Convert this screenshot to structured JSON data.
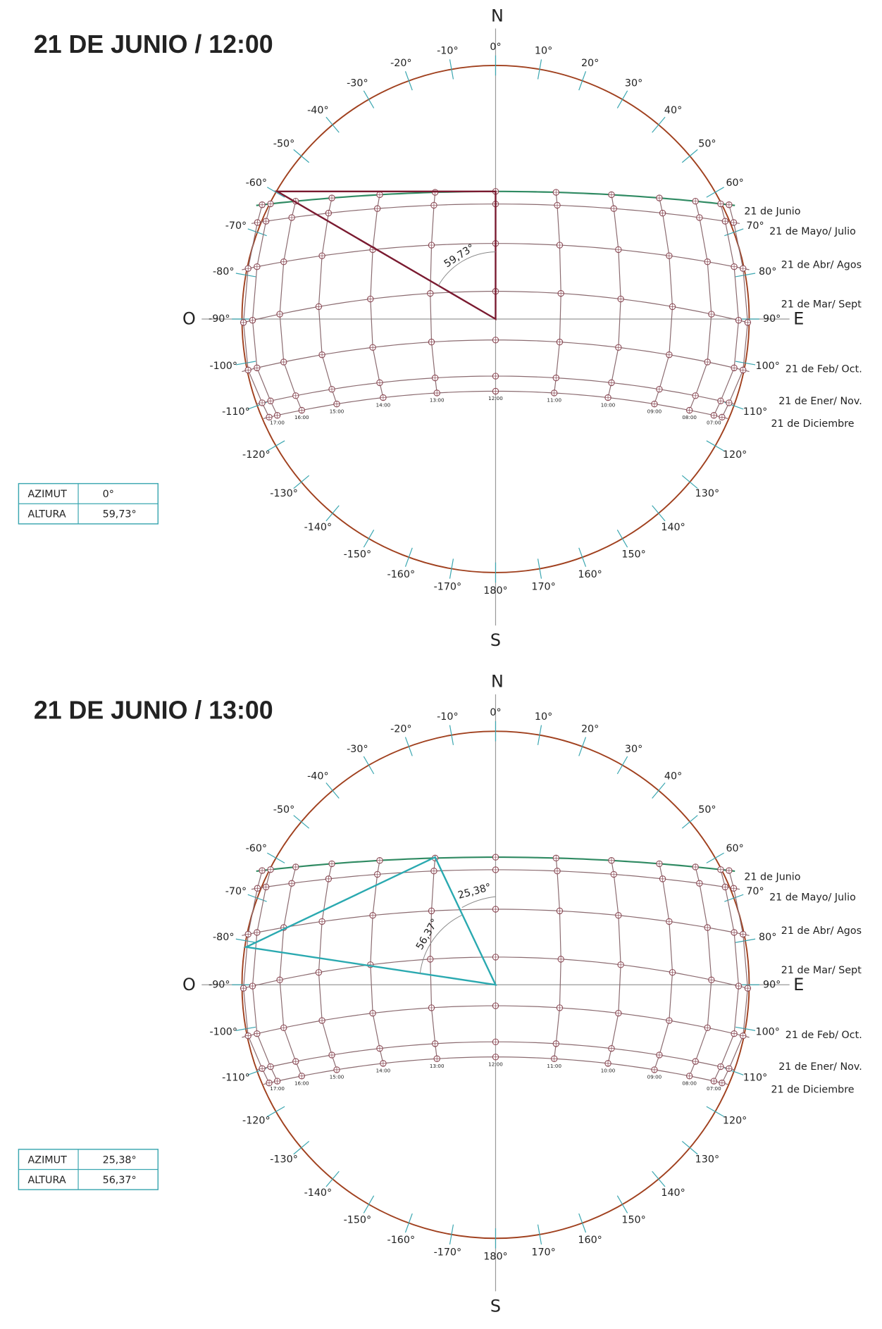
{
  "panels": [
    {
      "title": "21 DE JUNIO / 12:00",
      "table": {
        "rows": [
          [
            "AZIMUT",
            "0°"
          ],
          [
            "ALTURA",
            "59,73°"
          ]
        ]
      },
      "compass": {
        "n": "N",
        "s": "S",
        "w": "O",
        "e": "E"
      },
      "degree_labels": [
        "0°",
        "10°",
        "20°",
        "30°",
        "40°",
        "50°",
        "60°",
        "70°",
        "80°",
        "90°",
        "100°",
        "110°",
        "120°",
        "130°",
        "140°",
        "150°",
        "160°",
        "170°",
        "180°",
        "-170°",
        "-160°",
        "-150°",
        "-140°",
        "-130°",
        "-120°",
        "-110°",
        "-100°",
        "-90°",
        "-80°",
        "-70°",
        "-60°",
        "-50°",
        "-40°",
        "-30°",
        "-20°",
        "-10°"
      ],
      "date_labels": [
        "21 de Junio",
        "21 de Mayo/ Julio",
        "21 de Abr/ Agos",
        "21 de Mar/ Sept",
        "21 de Feb/ Oct.",
        "21 de Ener/ Nov.",
        "21 de Diciembre"
      ],
      "hour_labels": [
        "17:00",
        "16:00",
        "15:00",
        "14:00",
        "13:00",
        "12:00",
        "11:00",
        "10:00",
        "09:00",
        "08:00",
        "07:00"
      ],
      "angle_labels": [
        "59,73°"
      ]
    },
    {
      "title": "21 DE JUNIO / 13:00",
      "table": {
        "rows": [
          [
            "AZIMUT",
            "25,38°"
          ],
          [
            "ALTURA",
            "56,37°"
          ]
        ]
      },
      "compass": {
        "n": "N",
        "s": "S",
        "w": "O",
        "e": "E"
      },
      "degree_labels": [
        "0°",
        "10°",
        "20°",
        "30°",
        "40°",
        "50°",
        "60°",
        "70°",
        "80°",
        "90°",
        "100°",
        "110°",
        "120°",
        "130°",
        "140°",
        "150°",
        "160°",
        "170°",
        "180°",
        "-170°",
        "-160°",
        "-150°",
        "-140°",
        "-130°",
        "-120°",
        "-110°",
        "-100°",
        "-90°",
        "-80°",
        "-70°",
        "-60°",
        "-50°",
        "-40°",
        "-30°",
        "-20°",
        "-10°"
      ],
      "date_labels": [
        "21 de Junio",
        "21 de Mayo/ Julio",
        "21 de Abr/ Agos",
        "21 de Mar/ Sept",
        "21 de Feb/ Oct.",
        "21 de Ener/ Nov.",
        "21 de Diciembre"
      ],
      "hour_labels": [
        "17:00",
        "16:00",
        "15:00",
        "14:00",
        "13:00",
        "12:00",
        "11:00",
        "10:00",
        "09:00",
        "08:00",
        "07:00"
      ],
      "angle_labels": [
        "25,38°",
        "56,37°"
      ]
    }
  ]
}
